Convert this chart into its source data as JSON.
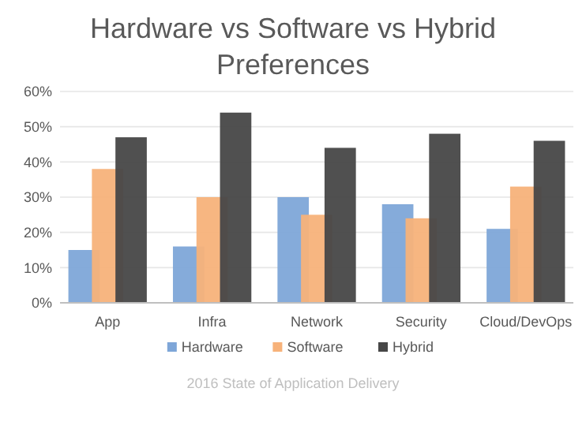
{
  "chart_data": {
    "type": "bar",
    "title": "Hardware vs Software vs Hybrid Preferences",
    "categories": [
      "App",
      "Infra",
      "Network",
      "Security",
      "Cloud/DevOps"
    ],
    "series": [
      {
        "name": "Hardware",
        "color": "#7ea6d8",
        "values": [
          15,
          16,
          30,
          28,
          21
        ]
      },
      {
        "name": "Software",
        "color": "#f7b27a",
        "values": [
          38,
          30,
          25,
          24,
          33
        ]
      },
      {
        "name": "Hybrid",
        "color": "#474747",
        "values": [
          47,
          54,
          44,
          48,
          46
        ]
      }
    ],
    "ylim": [
      0,
      60
    ],
    "yticks": [
      {
        "value": 0,
        "label": "0%"
      },
      {
        "value": 10,
        "label": "10%"
      },
      {
        "value": 20,
        "label": "20%"
      },
      {
        "value": 30,
        "label": "30%"
      },
      {
        "value": 40,
        "label": "40%"
      },
      {
        "value": 50,
        "label": "50%"
      },
      {
        "value": 60,
        "label": "60%"
      }
    ],
    "grid": "y",
    "legend": "bottom",
    "annotations": [
      "2016 State of Application Delivery"
    ]
  }
}
